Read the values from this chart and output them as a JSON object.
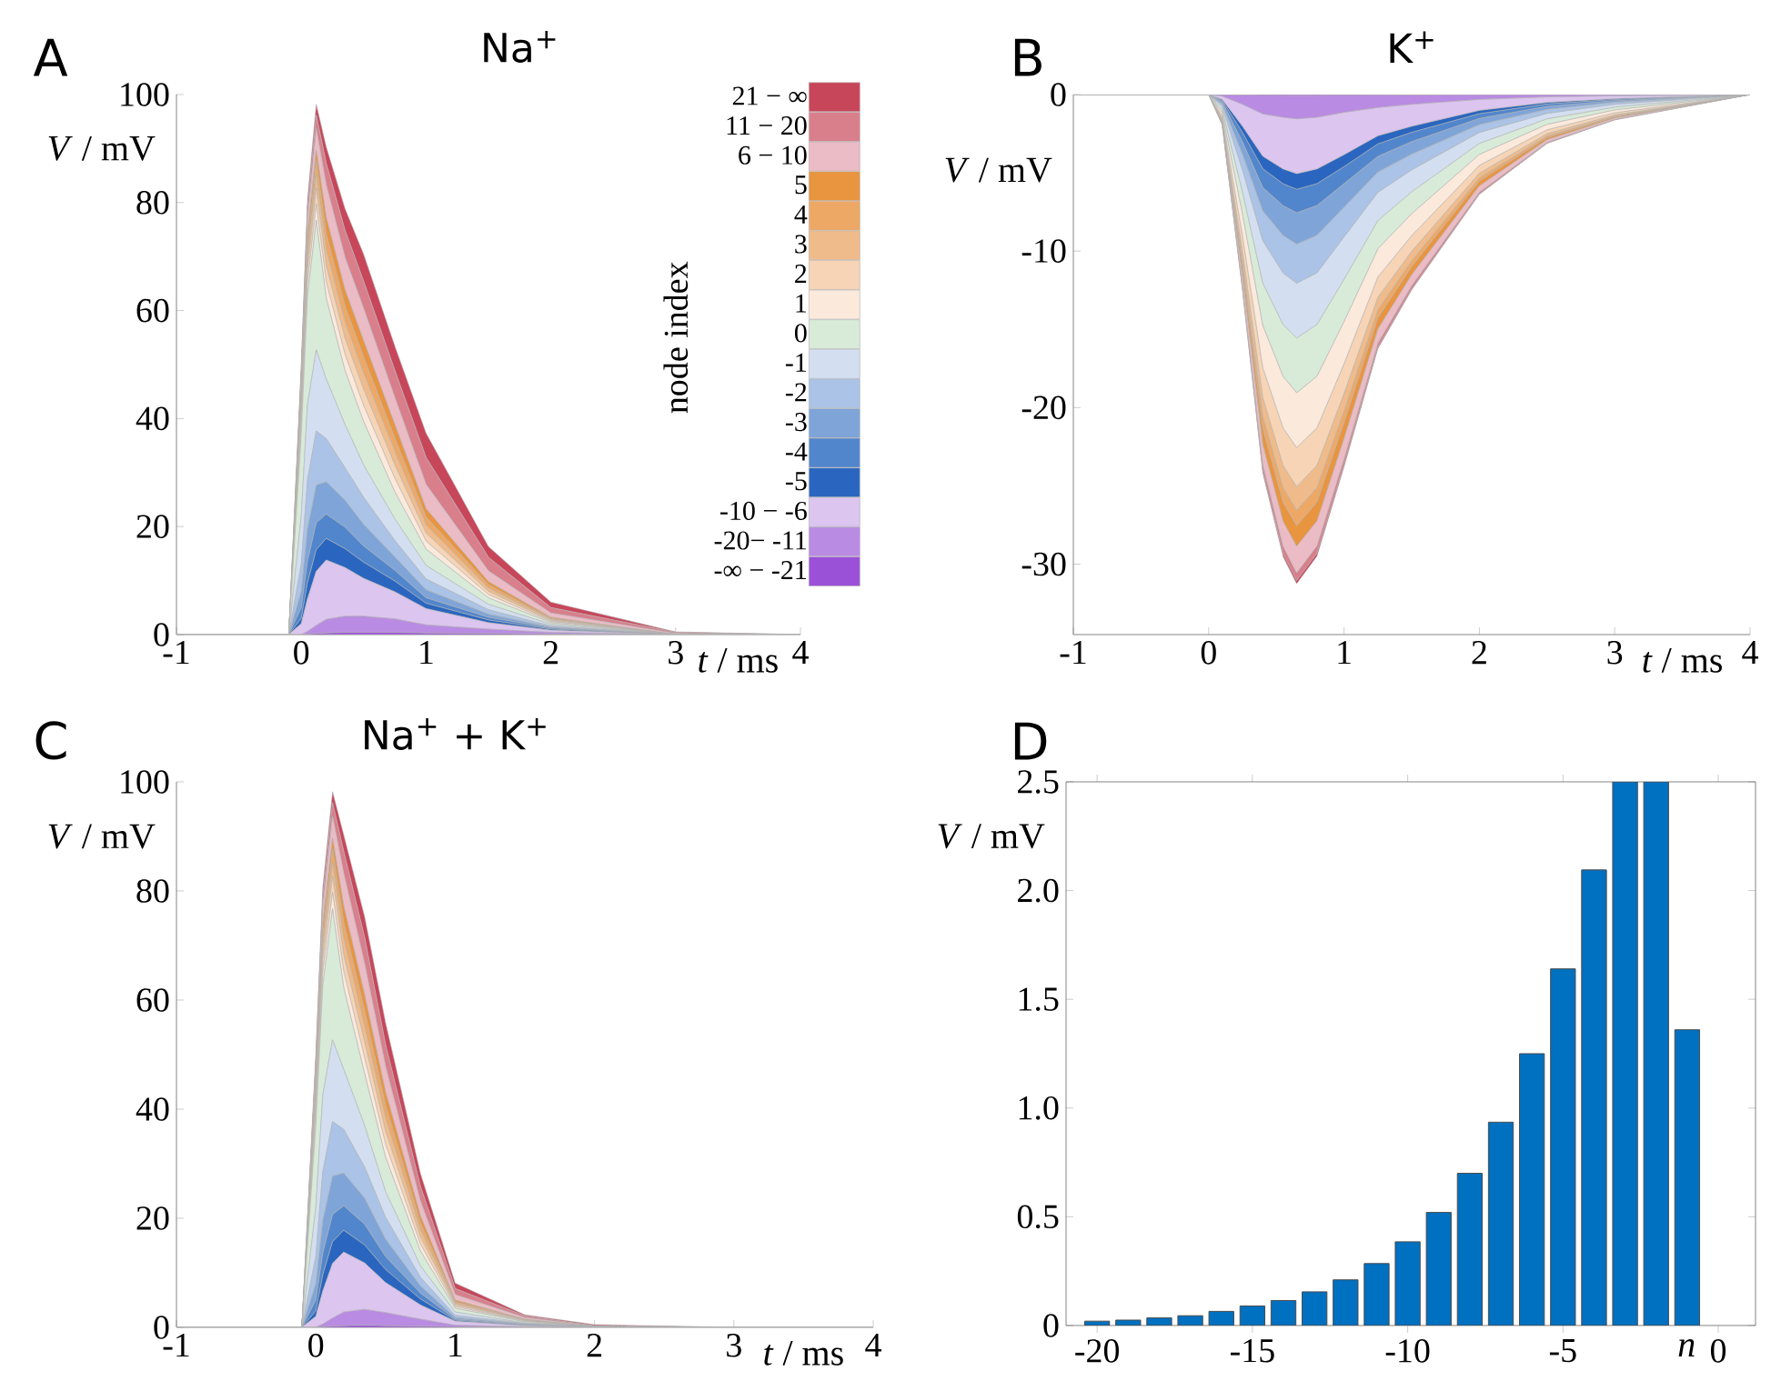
{
  "chart_data": [
    {
      "type": "area",
      "stacked": true,
      "title": "Na$^{+}$",
      "xlabel": "*t* / ms",
      "ylabel": "*V* / mV",
      "annotations": [
        "A"
      ],
      "legend": "top right",
      "legend_title": "node index",
      "xlim": [
        -1,
        4
      ],
      "ylim": [
        0,
        100
      ],
      "xticks": [
        -1,
        0,
        1,
        2,
        3,
        4
      ],
      "yticks": [
        0,
        20,
        40,
        60,
        80,
        100
      ],
      "x": [
        -1,
        -0.1,
        0,
        0.05,
        0.12,
        0.2,
        0.35,
        0.5,
        0.75,
        1,
        1.5,
        2,
        3,
        4
      ],
      "series": [
        {
          "name": "-∞ − -21",
          "color": "#9b50d8",
          "values": [
            0,
            0,
            0,
            0.1,
            0.2,
            0.3,
            0.4,
            0.4,
            0.4,
            0.3,
            0.2,
            0.1,
            0,
            0
          ]
        },
        {
          "name": "-20− -11",
          "color": "#b98be3",
          "values": [
            0,
            0,
            0,
            0.5,
            1.5,
            2.5,
            3,
            3,
            2.5,
            1.5,
            0.8,
            0.3,
            0,
            0
          ]
        },
        {
          "name": "-10 − -6",
          "color": "#dcc5ef",
          "values": [
            0,
            0,
            2,
            6,
            10,
            11,
            9,
            7,
            5,
            3,
            1.2,
            0.4,
            0,
            0
          ]
        },
        {
          "name": "-5",
          "color": "#2a66bf",
          "values": [
            0,
            0,
            1,
            3,
            4,
            4,
            3.5,
            3,
            2,
            1,
            0.5,
            0.2,
            0,
            0
          ]
        },
        {
          "name": "-4",
          "color": "#5286cc",
          "values": [
            0,
            0,
            2,
            4,
            5,
            4.5,
            4,
            3,
            2,
            1,
            0.5,
            0.2,
            0,
            0
          ]
        },
        {
          "name": "-3",
          "color": "#7fa4d8",
          "values": [
            0,
            0,
            3,
            6,
            7,
            6,
            5,
            4,
            2.5,
            1.5,
            0.6,
            0.2,
            0,
            0
          ]
        },
        {
          "name": "-2",
          "color": "#aac3e6",
          "values": [
            0,
            0,
            5,
            9,
            10,
            8,
            6,
            5,
            3,
            2,
            0.8,
            0.2,
            0,
            0
          ]
        },
        {
          "name": "-1",
          "color": "#d3dff0",
          "values": [
            0,
            0,
            9,
            14,
            15,
            11,
            8,
            6,
            4,
            2.5,
            1,
            0.3,
            0,
            0
          ]
        },
        {
          "name": "0",
          "color": "#d8ead8",
          "values": [
            0,
            0,
            15,
            20,
            24,
            15,
            10,
            8,
            5,
            3,
            1.2,
            0.3,
            0,
            0
          ]
        },
        {
          "name": "1",
          "color": "#fbe9dc",
          "values": [
            0,
            0,
            2,
            2.5,
            3,
            3,
            3,
            3,
            2.5,
            1.5,
            0.6,
            0.2,
            0,
            0
          ]
        },
        {
          "name": "2",
          "color": "#f6d4b5",
          "values": [
            0,
            0,
            2,
            2.5,
            3,
            3,
            3,
            3,
            2.5,
            1.5,
            0.6,
            0.2,
            0,
            0
          ]
        },
        {
          "name": "3",
          "color": "#f0bb8a",
          "values": [
            0,
            0,
            2,
            2.5,
            2.5,
            3,
            3,
            3,
            2.5,
            1.5,
            0.6,
            0.2,
            0,
            0
          ]
        },
        {
          "name": "4",
          "color": "#eea866",
          "values": [
            0,
            0,
            1.5,
            2,
            2.5,
            3,
            3,
            3,
            2.5,
            1.5,
            0.6,
            0.2,
            0,
            0
          ]
        },
        {
          "name": "5",
          "color": "#e9943f",
          "values": [
            0,
            0,
            1.5,
            2,
            2,
            3,
            3,
            3,
            2.5,
            1.5,
            0.6,
            0.2,
            0,
            0
          ]
        },
        {
          "name": "6 − 10",
          "color": "#ebbcc6",
          "values": [
            0,
            0,
            2,
            3,
            4,
            6,
            6,
            6,
            5,
            4.5,
            2,
            0.8,
            0.2,
            0
          ]
        },
        {
          "name": "11 − 20",
          "color": "#d97f8c",
          "values": [
            0,
            0,
            1,
            2,
            2.5,
            4,
            5,
            5,
            5,
            5,
            2.5,
            1,
            0.2,
            0
          ]
        },
        {
          "name": "21 − ∞",
          "color": "#c8465a",
          "values": [
            0,
            0,
            1,
            1.5,
            2,
            3,
            4,
            5,
            4.5,
            4.5,
            2,
            1,
            0.1,
            0
          ]
        }
      ]
    },
    {
      "type": "area",
      "stacked": true,
      "title": "K$^{+}$",
      "xlabel": "*t* / ms",
      "ylabel": "*V* / mV",
      "annotations": [
        "B"
      ],
      "xlim": [
        -1,
        4
      ],
      "ylim": [
        -34.5,
        0
      ],
      "xticks": [
        -1,
        0,
        1,
        2,
        3,
        4
      ],
      "yticks": [
        -30,
        -20,
        -10,
        0
      ],
      "x": [
        -1,
        0,
        0.1,
        0.25,
        0.4,
        0.55,
        0.65,
        0.8,
        1,
        1.25,
        1.5,
        2,
        2.5,
        3,
        4
      ],
      "series": [
        {
          "color": "#9b50d8",
          "values": [
            0,
            0,
            0,
            -0.02,
            -0.04,
            -0.05,
            -0.05,
            -0.05,
            -0.04,
            -0.03,
            -0.02,
            -0.01,
            0,
            0,
            0
          ]
        },
        {
          "color": "#b98be3",
          "values": [
            0,
            0,
            -0.1,
            -0.6,
            -1.2,
            -1.4,
            -1.5,
            -1.4,
            -1.1,
            -0.8,
            -0.6,
            -0.3,
            -0.15,
            -0.08,
            0
          ]
        },
        {
          "color": "#dcc5ef",
          "values": [
            0,
            0,
            -0.2,
            -1.4,
            -2.7,
            -3.3,
            -3.5,
            -3.3,
            -2.7,
            -1.8,
            -1.4,
            -0.7,
            -0.35,
            -0.18,
            0
          ]
        },
        {
          "color": "#2a66bf",
          "values": [
            0,
            0,
            -0.07,
            -0.4,
            -0.8,
            -0.95,
            -1,
            -0.94,
            -0.76,
            -0.52,
            -0.39,
            -0.21,
            -0.1,
            -0.05,
            0
          ]
        },
        {
          "color": "#5286cc",
          "values": [
            0,
            0,
            -0.1,
            -0.6,
            -1.2,
            -1.4,
            -1.5,
            -1.4,
            -1.1,
            -0.8,
            -0.6,
            -0.3,
            -0.15,
            -0.08,
            0
          ]
        },
        {
          "color": "#7fa4d8",
          "values": [
            0,
            0,
            -0.13,
            -0.8,
            -1.5,
            -1.9,
            -2,
            -1.9,
            -1.5,
            -1,
            -0.8,
            -0.4,
            -0.2,
            -0.1,
            0
          ]
        },
        {
          "color": "#aac3e6",
          "values": [
            0,
            0,
            -0.16,
            -1,
            -1.9,
            -2.4,
            -2.5,
            -2.4,
            -1.9,
            -1.3,
            -1,
            -0.5,
            -0.25,
            -0.13,
            0
          ]
        },
        {
          "color": "#d3dff0",
          "values": [
            0,
            0,
            -0.2,
            -1.4,
            -2.7,
            -3.3,
            -3.5,
            -3.3,
            -2.7,
            -1.8,
            -1.4,
            -0.7,
            -0.35,
            -0.18,
            0
          ]
        },
        {
          "color": "#d8ead8",
          "values": [
            0,
            0,
            -0.2,
            -1.4,
            -2.7,
            -3.3,
            -3.5,
            -3.3,
            -2.7,
            -1.8,
            -1.4,
            -0.7,
            -0.35,
            -0.18,
            0
          ]
        },
        {
          "color": "#fbe9dc",
          "values": [
            0,
            0,
            -0.2,
            -1.4,
            -2.7,
            -3.3,
            -3.5,
            -3.3,
            -2.7,
            -1.8,
            -1.4,
            -0.7,
            -0.35,
            -0.18,
            0
          ]
        },
        {
          "color": "#f6d4b5",
          "values": [
            0,
            0,
            -0.16,
            -1,
            -1.9,
            -2.4,
            -2.5,
            -2.4,
            -1.9,
            -1.3,
            -1,
            -0.5,
            -0.25,
            -0.13,
            0
          ]
        },
        {
          "color": "#f0bb8a",
          "values": [
            0,
            0,
            -0.1,
            -0.6,
            -1.2,
            -1.4,
            -1.5,
            -1.4,
            -1.1,
            -0.8,
            -0.6,
            -0.3,
            -0.15,
            -0.08,
            0
          ]
        },
        {
          "color": "#eea866",
          "values": [
            0,
            0,
            -0.07,
            -0.4,
            -0.8,
            -0.95,
            -1,
            -0.94,
            -0.76,
            -0.52,
            -0.39,
            -0.21,
            -0.1,
            -0.05,
            0
          ]
        },
        {
          "color": "#e9943f",
          "values": [
            0,
            0,
            -0.08,
            -0.5,
            -1,
            -1.2,
            -1.3,
            -1.2,
            -1,
            -0.7,
            -0.5,
            -0.3,
            -0.13,
            -0.07,
            0
          ]
        },
        {
          "color": "#ebbcc6",
          "values": [
            0,
            0,
            -0.11,
            -0.7,
            -1.3,
            -1.6,
            -1.7,
            -1.6,
            -1.3,
            -0.9,
            -0.7,
            -0.4,
            -0.17,
            -0.09,
            0
          ]
        },
        {
          "color": "#d97f8c",
          "values": [
            0,
            0,
            -0.03,
            -0.2,
            -0.4,
            -0.48,
            -0.5,
            -0.47,
            -0.38,
            -0.26,
            -0.2,
            -0.1,
            -0.05,
            -0.03,
            0
          ]
        },
        {
          "color": "#c8465a",
          "values": [
            0,
            0,
            -0.01,
            -0.08,
            -0.15,
            -0.19,
            -0.2,
            -0.19,
            -0.15,
            -0.1,
            -0.08,
            -0.04,
            -0.02,
            -0.01,
            0
          ]
        }
      ]
    },
    {
      "type": "area",
      "stacked": true,
      "title": "Na$^{+}$ + K$^{+}$",
      "xlabel": "*t* / ms",
      "ylabel": "*V* / mV",
      "annotations": [
        "C"
      ],
      "xlim": [
        -1,
        4
      ],
      "ylim": [
        0,
        100
      ],
      "xticks": [
        -1,
        0,
        1,
        2,
        3,
        4
      ],
      "yticks": [
        0,
        20,
        40,
        60,
        80,
        100
      ],
      "x": [
        -1,
        -0.1,
        0,
        0.05,
        0.12,
        0.2,
        0.35,
        0.5,
        0.75,
        1,
        1.5,
        2,
        3,
        4
      ],
      "series": [
        {
          "color": "#9b50d8",
          "values": [
            0,
            0,
            0,
            0.1,
            0.2,
            0.3,
            0.4,
            0.3,
            0.2,
            0.1,
            0,
            0,
            0,
            0
          ]
        },
        {
          "color": "#b98be3",
          "values": [
            0,
            0,
            0,
            0.5,
            1.5,
            2.5,
            2.9,
            2.4,
            1.3,
            0.3,
            0.1,
            0,
            0,
            0
          ]
        },
        {
          "color": "#dcc5ef",
          "values": [
            0,
            0,
            2,
            6,
            10,
            11,
            8.5,
            5.5,
            2.6,
            0.7,
            0.2,
            0.1,
            0,
            0
          ]
        },
        {
          "color": "#2a66bf",
          "values": [
            0,
            0,
            1,
            3,
            4,
            4,
            3.3,
            2.4,
            1.1,
            0.2,
            0.1,
            0,
            0,
            0
          ]
        },
        {
          "color": "#5286cc",
          "values": [
            0,
            0,
            2,
            4,
            5,
            4.5,
            3.8,
            2.4,
            1.1,
            0.2,
            0.1,
            0,
            0,
            0
          ]
        },
        {
          "color": "#7fa4d8",
          "values": [
            0,
            0,
            3,
            6,
            7,
            6,
            4.8,
            3.2,
            1.3,
            0.3,
            0.1,
            0,
            0,
            0
          ]
        },
        {
          "color": "#aac3e6",
          "values": [
            0,
            0,
            5,
            9,
            10,
            8,
            5.7,
            4,
            1.6,
            0.4,
            0.1,
            0,
            0,
            0
          ]
        },
        {
          "color": "#d3dff0",
          "values": [
            0,
            0,
            9,
            14,
            15,
            11,
            7.6,
            4.7,
            2.1,
            0.6,
            0.1,
            0,
            0,
            0
          ]
        },
        {
          "color": "#d8ead8",
          "values": [
            0,
            0,
            15,
            20,
            24,
            15,
            9.5,
            6.3,
            2.7,
            0.7,
            0.2,
            0,
            0,
            0
          ]
        },
        {
          "color": "#fbe9dc",
          "values": [
            0,
            0,
            2,
            2.5,
            3,
            3,
            2.9,
            2.4,
            1.3,
            0.3,
            0.1,
            0,
            0,
            0
          ]
        },
        {
          "color": "#f6d4b5",
          "values": [
            0,
            0,
            2,
            2.5,
            3,
            3,
            2.9,
            2.4,
            1.3,
            0.3,
            0.1,
            0,
            0,
            0
          ]
        },
        {
          "color": "#f0bb8a",
          "values": [
            0,
            0,
            2,
            2.5,
            2.5,
            3,
            2.9,
            2.4,
            1.3,
            0.3,
            0.1,
            0,
            0,
            0
          ]
        },
        {
          "color": "#eea866",
          "values": [
            0,
            0,
            1.5,
            2,
            2.5,
            3,
            2.9,
            2.4,
            1.3,
            0.3,
            0.1,
            0,
            0,
            0
          ]
        },
        {
          "color": "#e9943f",
          "values": [
            0,
            0,
            1.5,
            2,
            2,
            3,
            2.9,
            2.4,
            1.3,
            0.3,
            0.1,
            0,
            0,
            0
          ]
        },
        {
          "color": "#ebbcc6",
          "values": [
            0,
            0,
            2,
            3,
            4,
            6,
            5.7,
            4.7,
            2.7,
            1,
            0.3,
            0.1,
            0,
            0
          ]
        },
        {
          "color": "#d97f8c",
          "values": [
            0,
            0,
            1,
            2,
            2.5,
            4,
            4.8,
            4,
            2.7,
            1.1,
            0.3,
            0.1,
            0,
            0
          ]
        },
        {
          "color": "#c8465a",
          "values": [
            0,
            0,
            1,
            1.5,
            2,
            3,
            3.8,
            4,
            2.4,
            1,
            0.2,
            0.2,
            0,
            0
          ]
        }
      ]
    },
    {
      "type": "bar",
      "xlabel": "n",
      "ylabel": "*V* / mV",
      "annotations": [
        "D"
      ],
      "color": "#0070c0",
      "xlim": [
        -21,
        1.2
      ],
      "ylim": [
        0,
        2.5
      ],
      "xticks": [
        -20,
        -15,
        -10,
        -5,
        0
      ],
      "yticks": [
        0,
        0.5,
        {
          "value": 1,
          "label": "1.0"
        },
        1.5,
        {
          "value": 2,
          "label": "2.0"
        },
        2.5
      ],
      "x": [
        -20,
        -19,
        -18,
        -17,
        -16,
        -15,
        -14,
        -13,
        -12,
        -11,
        -10,
        -9,
        -8,
        -7,
        -6,
        -5,
        -4,
        -3,
        -2,
        -1
      ],
      "values": [
        0.02,
        0.025,
        0.035,
        0.045,
        0.065,
        0.09,
        0.115,
        0.155,
        0.21,
        0.285,
        0.385,
        0.52,
        0.7,
        0.935,
        1.25,
        1.64,
        2.095,
        2.5,
        2.5,
        1.36
      ]
    }
  ]
}
